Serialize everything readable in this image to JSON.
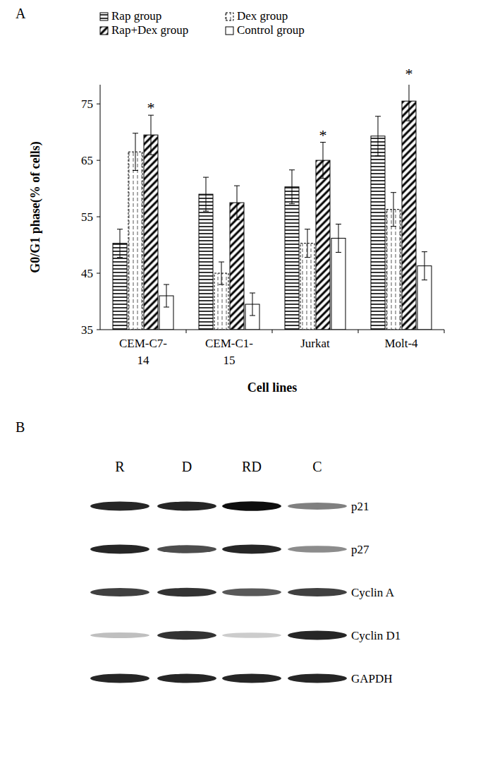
{
  "chart_data": {
    "type": "bar",
    "panel_label": "A",
    "x_label": "Cell lines",
    "y_label": "G0/G1 phase(% of cells)",
    "categories": [
      "CEM-C7-14",
      "CEM-C1-15",
      "Jurkat",
      "Molt-4"
    ],
    "series": [
      {
        "name": "Rap group",
        "color": "#000000",
        "values": [
          50.3,
          59,
          60.3,
          69.3
        ],
        "errors": [
          2.5,
          3,
          3,
          3.5
        ]
      },
      {
        "name": "Dex group",
        "color": "#000000",
        "values": [
          66.5,
          45,
          50.3,
          56.3
        ],
        "errors": [
          3.3,
          2,
          2.5,
          3
        ]
      },
      {
        "name": "Rap+Dex group",
        "color": "#000000",
        "values": [
          69.5,
          57.5,
          65,
          75.5
        ],
        "errors": [
          3.5,
          3,
          3.2,
          3.5
        ]
      },
      {
        "name": "Control group",
        "color": "#000000",
        "values": [
          41,
          39.5,
          51.2,
          46.3
        ],
        "errors": [
          2,
          2,
          2.5,
          2.5
        ]
      }
    ],
    "annotations": [
      {
        "text": "*",
        "category": 0,
        "series": 2
      },
      {
        "text": "*",
        "category": 2,
        "series": 2
      },
      {
        "text": "*",
        "category": 3,
        "series": 2
      }
    ],
    "ylim": [
      35,
      78.4
    ],
    "yticks": [
      35,
      45,
      55,
      65,
      75
    ],
    "grid": false,
    "legend": "top"
  },
  "blot": {
    "panel_label": "B",
    "lanes": [
      "R",
      "D",
      "RD",
      "C"
    ],
    "rows": [
      {
        "label": "p21",
        "intensity": [
          0.85,
          0.85,
          0.95,
          0.5
        ]
      },
      {
        "label": "p27",
        "intensity": [
          0.85,
          0.7,
          0.85,
          0.45
        ]
      },
      {
        "label": "Cyclin A",
        "intensity": [
          0.75,
          0.8,
          0.65,
          0.75
        ]
      },
      {
        "label": "Cyclin D1",
        "intensity": [
          0.25,
          0.8,
          0.2,
          0.85
        ]
      },
      {
        "label": "GAPDH",
        "intensity": [
          0.85,
          0.85,
          0.85,
          0.85
        ]
      }
    ]
  }
}
